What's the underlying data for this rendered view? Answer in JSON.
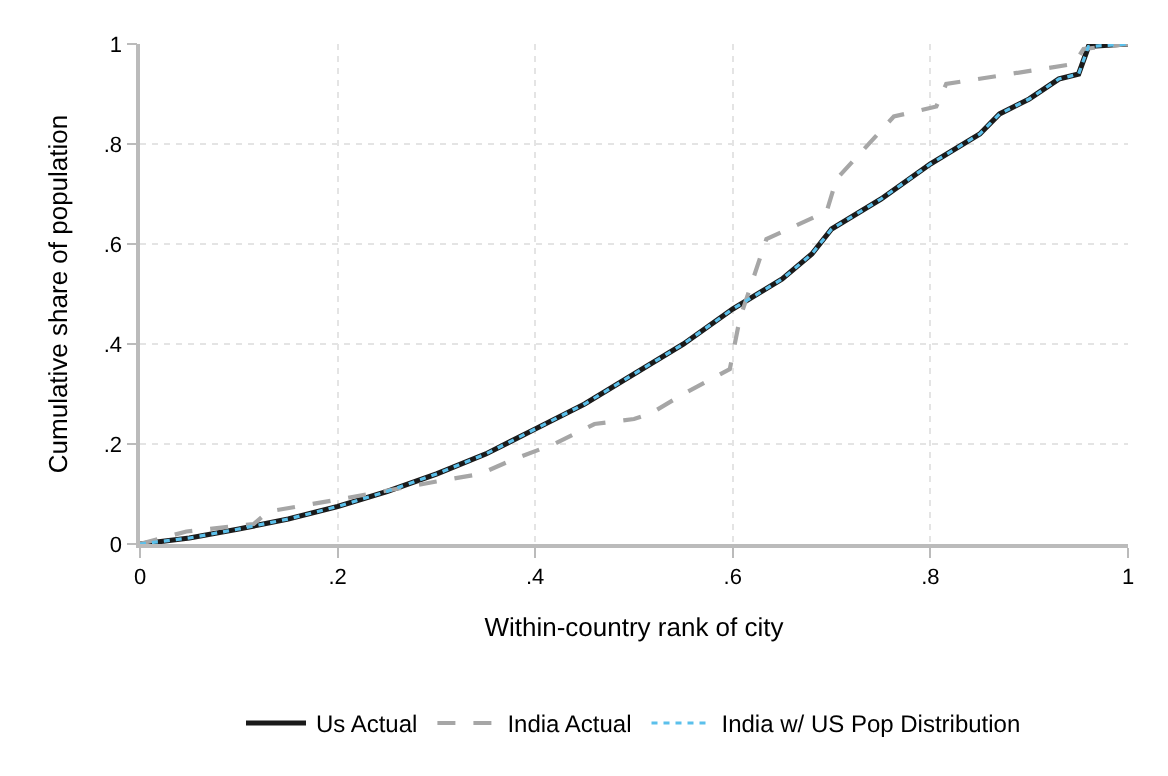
{
  "chart_data": {
    "type": "line",
    "xlabel": "Within-country rank of city",
    "ylabel": "Cumulative share of population",
    "xlim": [
      0,
      1
    ],
    "ylim": [
      0,
      1
    ],
    "xticks": [
      0,
      {
        "value": 0.2,
        "label": ".2"
      },
      {
        "value": 0.4,
        "label": ".4"
      },
      {
        "value": 0.6,
        "label": ".6"
      },
      {
        "value": 0.8,
        "label": ".8"
      },
      1
    ],
    "yticks": [
      0,
      {
        "value": 0.2,
        "label": ".2"
      },
      {
        "value": 0.4,
        "label": ".4"
      },
      {
        "value": 0.6,
        "label": ".6"
      },
      {
        "value": 0.8,
        "label": ".8"
      },
      1
    ],
    "grid": true,
    "legend": "bottom",
    "marker": "none",
    "series": [
      {
        "name": "Us Actual",
        "color": "#1a1a1a",
        "line_style": "solid",
        "x": [
          0,
          0.05,
          0.1,
          0.15,
          0.2,
          0.25,
          0.3,
          0.35,
          0.4,
          0.45,
          0.5,
          0.55,
          0.6,
          0.65,
          0.68,
          0.7,
          0.75,
          0.8,
          0.85,
          0.87,
          0.9,
          0.93,
          0.95,
          0.96,
          1
        ],
        "values": [
          0,
          0.012,
          0.03,
          0.05,
          0.075,
          0.105,
          0.14,
          0.18,
          0.23,
          0.28,
          0.34,
          0.4,
          0.47,
          0.53,
          0.58,
          0.63,
          0.69,
          0.76,
          0.82,
          0.86,
          0.89,
          0.93,
          0.94,
          0.995,
          1
        ]
      },
      {
        "name": "India Actual",
        "color": "#a6a6a6",
        "line_style": "dashed",
        "x": [
          0,
          0.047,
          0.115,
          0.13,
          0.198,
          0.27,
          0.3,
          0.344,
          0.379,
          0.419,
          0.46,
          0.5,
          0.516,
          0.55,
          0.597,
          0.607,
          0.634,
          0.695,
          0.705,
          0.763,
          0.806,
          0.816,
          0.945,
          0.955,
          1
        ],
        "values": [
          0,
          0.025,
          0.04,
          0.065,
          0.088,
          0.114,
          0.125,
          0.14,
          0.17,
          0.2,
          0.24,
          0.25,
          0.26,
          0.3,
          0.35,
          0.45,
          0.61,
          0.665,
          0.73,
          0.855,
          0.875,
          0.92,
          0.96,
          0.99,
          1
        ]
      },
      {
        "name": "India w/ US Pop Distribution",
        "color": "#5bc0eb",
        "line_style": "dotted",
        "x": [
          0,
          0.05,
          0.1,
          0.15,
          0.2,
          0.25,
          0.3,
          0.35,
          0.4,
          0.45,
          0.5,
          0.55,
          0.6,
          0.65,
          0.68,
          0.7,
          0.75,
          0.8,
          0.85,
          0.87,
          0.9,
          0.93,
          0.95,
          0.96,
          1
        ],
        "values": [
          0,
          0.012,
          0.03,
          0.05,
          0.075,
          0.105,
          0.14,
          0.18,
          0.23,
          0.28,
          0.34,
          0.4,
          0.47,
          0.53,
          0.58,
          0.63,
          0.69,
          0.76,
          0.82,
          0.86,
          0.89,
          0.93,
          0.94,
          0.995,
          1
        ]
      }
    ]
  }
}
